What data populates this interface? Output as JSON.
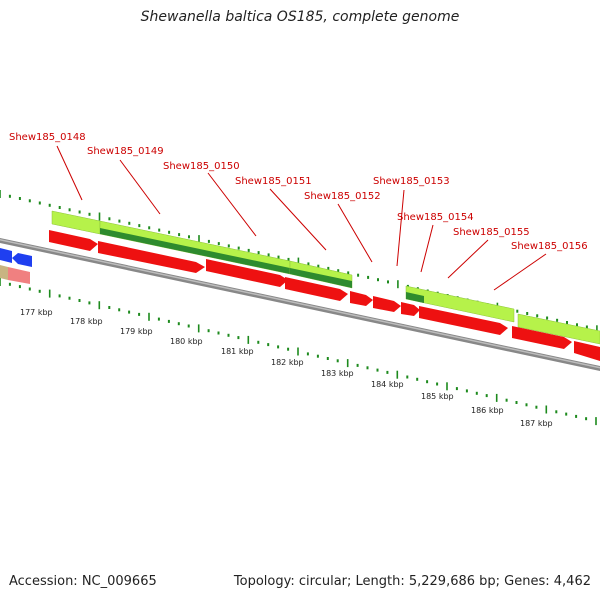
{
  "title": "Shewanella baltica OS185, complete genome",
  "footer": {
    "accession": "Accession: NC_009665",
    "topology": "Topology: circular; Length: 5,229,686 bp; Genes: 4,462"
  },
  "colors": {
    "cds": "#ee1111",
    "gene_light": "#b6f24a",
    "gene_dark": "#2e8b2e",
    "label": "#cc0000",
    "tick": "#1d8a1d",
    "backbone": "#888888",
    "blue_feature": "#1f3ff0",
    "tan_feature": "#c8b482",
    "pink_feature": "#f08080"
  },
  "kbp_labels": [
    "177 kbp",
    "178 kbp",
    "179 kbp",
    "180 kbp",
    "181 kbp",
    "182 kbp",
    "183 kbp",
    "184 kbp",
    "185 kbp",
    "186 kbp",
    "187 kbp"
  ],
  "gene_labels": [
    "Shew185_0148",
    "Shew185_0149",
    "Shew185_0150",
    "Shew185_0151",
    "Shew185_0152",
    "Shew185_0153",
    "Shew185_0154",
    "Shew185_0155",
    "Shew185_0156"
  ]
}
